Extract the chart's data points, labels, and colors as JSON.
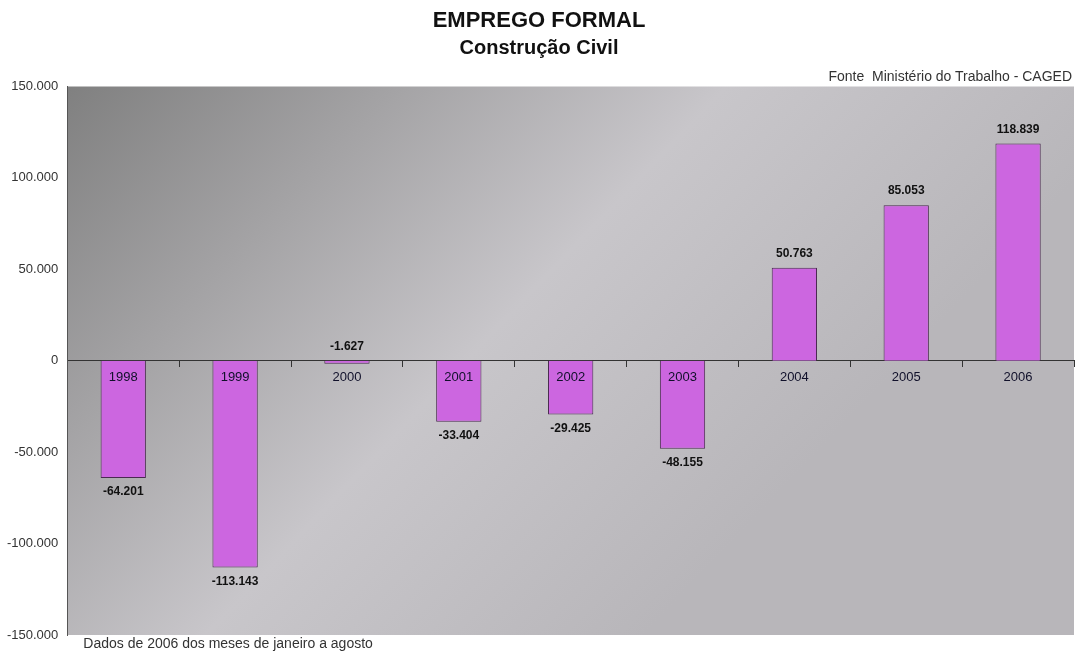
{
  "chart_data": {
    "type": "bar",
    "title": "EMPREGO FORMAL",
    "subtitle": "Construção Civil",
    "categories": [
      "1998",
      "1999",
      "2000",
      "2001",
      "2002",
      "2003",
      "2004",
      "2005",
      "2006"
    ],
    "values": [
      -64201,
      -113143,
      -1627,
      -33404,
      -29425,
      -48155,
      50763,
      85053,
      118839
    ],
    "value_labels": [
      "-64.201",
      "-113.143",
      "-1.627",
      "-33.404",
      "-29.425",
      "-48.155",
      "50.763",
      "85.053",
      "118.839"
    ],
    "color": "#cc66e0",
    "ylim": [
      -150000,
      150000
    ],
    "yticks": [
      {
        "value": -150000,
        "label": "-150.000"
      },
      {
        "value": -100000,
        "label": "-100.000"
      },
      {
        "value": -50000,
        "label": "-50.000"
      },
      0,
      {
        "value": 50000,
        "label": "50.000"
      },
      {
        "value": 100000,
        "label": "100.000"
      },
      {
        "value": 150000,
        "label": "150.000"
      }
    ],
    "legend": false,
    "annotations": [
      "Fonte  Ministério do Trabalho - CAGED",
      "Dados de 2006 dos meses de janeiro a agosto"
    ]
  }
}
